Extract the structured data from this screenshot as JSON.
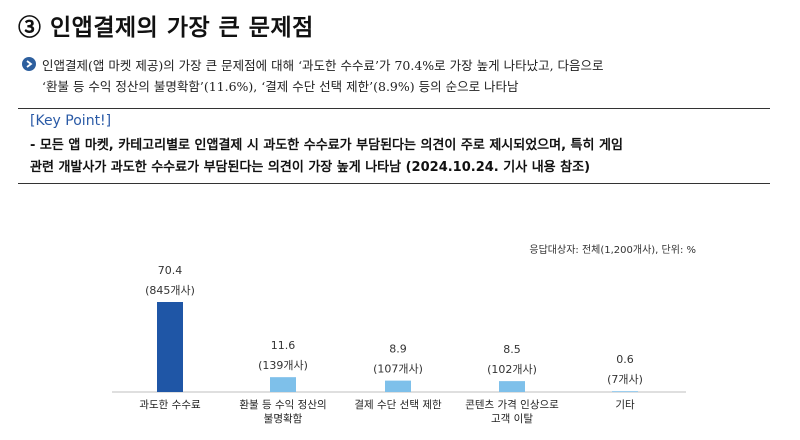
{
  "title": "③ 인앱결제의 가장 큰 문제점",
  "summary": {
    "line1": "인앱결제(앱 마켓 제공)의 가장 큰 문제점에 대해 ‘과도한 수수료’가 70.4%로 가장 높게 나타났고, 다음으로",
    "line2": "‘환불 등 수익 정산의 불명확함’(11.6%), ‘결제 수단 선택 제한’(8.9%) 등의 순으로 나타남"
  },
  "key_point": {
    "title": "[Key Point!]",
    "line1": "- 모든 앱 마켓, 카테고리별로 인앱결제 시 과도한 수수료가 부담된다는 의견이 주로 제시되었으며, 특히 게임",
    "line2": "관련 개발사가 과도한 수수료가 부담된다는 의견이 가장 높게 나타남 (2024.10.24. 기사 내용 참조)"
  },
  "chart_note": "응답대상자: 전체(1,200개사), 단위: %",
  "chart_data": {
    "type": "bar",
    "categories": [
      [
        "과도한 수수료"
      ],
      [
        "환불 등 수익 정산의",
        "불명확함"
      ],
      [
        "결제 수단 선택 제한"
      ],
      [
        "콘텐츠 가격 인상으로",
        "고객 이탈"
      ],
      [
        "기타"
      ]
    ],
    "values": [
      70.4,
      11.6,
      8.9,
      8.5,
      0.6
    ],
    "counts": [
      "(845개사)",
      "(139개사)",
      "(107개사)",
      "(102개사)",
      "(7개사)"
    ],
    "ylim": [
      0,
      100
    ],
    "colors": {
      "highlight": "#1f56a6",
      "default": "#7ec0ea"
    }
  }
}
